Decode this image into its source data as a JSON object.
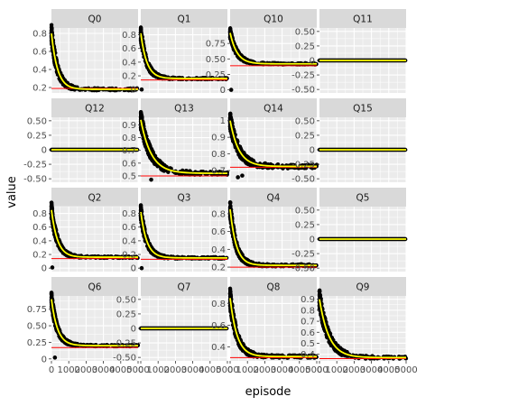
{
  "chart_data": {
    "type": "scatter",
    "layout": "facet_wrap",
    "ncol": 4,
    "xlabel": "episode",
    "ylabel": "value",
    "x_range": [
      0,
      5000
    ],
    "x_ticks": [
      0,
      1000,
      2000,
      3000,
      4000,
      5000
    ],
    "x_tick_labels": [
      "0",
      "1000",
      "2000",
      "3000",
      "4000",
      "5000"
    ],
    "colors": {
      "points": "#000000",
      "smooth": "#ffff00",
      "reference": "#ff0000",
      "panel_bg": "#ebebeb",
      "grid": "#ffffff",
      "strip_bg": "#d9d9d9"
    },
    "panels": [
      {
        "label": "Q0",
        "ylim": [
          0.14,
          0.86
        ],
        "y_ticks": [
          0.2,
          0.4,
          0.6,
          0.8
        ],
        "y_tick_labels": [
          "0.2",
          "0.4",
          "0.6",
          "0.8"
        ],
        "start": 0.8,
        "plateau": 0.18,
        "decay": 350,
        "reference": 0.19,
        "outliers": []
      },
      {
        "label": "Q1",
        "ylim": [
          -0.05,
          0.9
        ],
        "y_ticks": [
          0,
          0.2,
          0.4,
          0.6,
          0.8
        ],
        "y_tick_labels": [
          "0",
          "0.2",
          "0.4",
          "0.6",
          "0.8"
        ],
        "start": 0.82,
        "plateau": 0.16,
        "decay": 350,
        "reference": 0.14,
        "outliers": [
          [
            50,
            0
          ]
        ]
      },
      {
        "label": "Q10",
        "ylim": [
          -0.05,
          1.0
        ],
        "y_ticks": [
          0,
          0.25,
          0.5,
          0.75
        ],
        "y_tick_labels": [
          "0",
          "0.25",
          "0.50",
          "0.75"
        ],
        "start": 0.92,
        "plateau": 0.42,
        "decay": 400,
        "reference": 0.39,
        "outliers": [
          [
            60,
            0
          ]
        ]
      },
      {
        "label": "Q11",
        "ylim": [
          -0.56,
          0.56
        ],
        "y_ticks": [
          -0.5,
          -0.25,
          0,
          0.25,
          0.5
        ],
        "y_tick_labels": [
          "-0.50",
          "-0.25",
          "0",
          "0.25",
          "0.50"
        ],
        "start": 0,
        "plateau": 0,
        "decay": 400,
        "reference": 0,
        "outliers": []
      },
      {
        "label": "Q12",
        "ylim": [
          -0.56,
          0.56
        ],
        "y_ticks": [
          -0.5,
          -0.25,
          0,
          0.25,
          0.5
        ],
        "y_tick_labels": [
          "-0.50",
          "-0.25",
          "0",
          "0.25",
          "0.50"
        ],
        "start": 0,
        "plateau": 0,
        "decay": 400,
        "reference": 0,
        "outliers": []
      },
      {
        "label": "Q13",
        "ylim": [
          0.45,
          0.96
        ],
        "y_ticks": [
          0.5,
          0.6,
          0.7,
          0.8,
          0.9
        ],
        "y_tick_labels": [
          "0.5",
          "0.6",
          "0.7",
          "0.8",
          "0.9"
        ],
        "start": 0.94,
        "plateau": 0.52,
        "decay": 600,
        "reference": 0.5,
        "outliers": [
          [
            600,
            0.47
          ]
        ]
      },
      {
        "label": "Q14",
        "ylim": [
          0.63,
          1.02
        ],
        "y_ticks": [
          0.7,
          0.8,
          0.9,
          1.0
        ],
        "y_tick_labels": [
          "0.7",
          "0.8",
          "0.9",
          "1"
        ],
        "start": 1.0,
        "plateau": 0.725,
        "decay": 500,
        "reference": 0.72,
        "outliers": [
          [
            450,
            0.66
          ],
          [
            700,
            0.67
          ]
        ]
      },
      {
        "label": "Q15",
        "ylim": [
          -0.56,
          0.56
        ],
        "y_ticks": [
          -0.5,
          -0.25,
          0,
          0.25,
          0.5
        ],
        "y_tick_labels": [
          "-0.50",
          "-0.25",
          "0",
          "0.25",
          "0.50"
        ],
        "start": 0,
        "plateau": 0,
        "decay": 400,
        "reference": 0,
        "outliers": []
      },
      {
        "label": "Q2",
        "ylim": [
          -0.05,
          0.9
        ],
        "y_ticks": [
          0,
          0.2,
          0.4,
          0.6,
          0.8
        ],
        "y_tick_labels": [
          "0",
          "0.2",
          "0.4",
          "0.6",
          "0.8"
        ],
        "start": 0.85,
        "plateau": 0.16,
        "decay": 350,
        "reference": 0.14,
        "outliers": [
          [
            50,
            0.01
          ]
        ]
      },
      {
        "label": "Q3",
        "ylim": [
          -0.05,
          0.9
        ],
        "y_ticks": [
          0,
          0.2,
          0.4,
          0.6,
          0.8
        ],
        "y_tick_labels": [
          "0",
          "0.2",
          "0.4",
          "0.6",
          "0.8"
        ],
        "start": 0.82,
        "plateau": 0.15,
        "decay": 350,
        "reference": 0.13,
        "outliers": [
          [
            50,
            0
          ]
        ]
      },
      {
        "label": "Q4",
        "ylim": [
          0.15,
          0.88
        ],
        "y_ticks": [
          0.2,
          0.4,
          0.6,
          0.8
        ],
        "y_tick_labels": [
          "0.2",
          "0.4",
          "0.6",
          "0.8"
        ],
        "start": 0.85,
        "plateau": 0.22,
        "decay": 350,
        "reference": 0.2,
        "outliers": []
      },
      {
        "label": "Q5",
        "ylim": [
          -0.56,
          0.56
        ],
        "y_ticks": [
          -0.5,
          -0.25,
          0,
          0.25,
          0.5
        ],
        "y_tick_labels": [
          "-0.50",
          "-0.25",
          "0",
          "0.25",
          "0.50"
        ],
        "start": 0,
        "plateau": 0,
        "decay": 400,
        "reference": 0,
        "outliers": []
      },
      {
        "label": "Q6",
        "ylim": [
          -0.03,
          0.95
        ],
        "y_ticks": [
          0,
          0.25,
          0.5,
          0.75
        ],
        "y_tick_labels": [
          "0",
          "0.25",
          "0.50",
          "0.75"
        ],
        "start": 0.9,
        "plateau": 0.2,
        "decay": 350,
        "reference": 0.17,
        "outliers": [
          [
            200,
            0.02
          ]
        ]
      },
      {
        "label": "Q7",
        "ylim": [
          -0.56,
          0.56
        ],
        "y_ticks": [
          -0.5,
          -0.25,
          0,
          0.25,
          0.5
        ],
        "y_tick_labels": [
          "-0.50",
          "-0.25",
          "0",
          "0.25",
          "0.50"
        ],
        "start": 0,
        "plateau": 0,
        "decay": 400,
        "reference": 0,
        "outliers": []
      },
      {
        "label": "Q8",
        "ylim": [
          0.27,
          0.87
        ],
        "y_ticks": [
          0.4,
          0.6,
          0.8
        ],
        "y_tick_labels": [
          "0.4",
          "0.6",
          "0.8"
        ],
        "start": 0.85,
        "plateau": 0.31,
        "decay": 400,
        "reference": 0.3,
        "outliers": []
      },
      {
        "label": "Q9",
        "ylim": [
          0.34,
          0.93
        ],
        "y_ticks": [
          0.4,
          0.5,
          0.6,
          0.7,
          0.8,
          0.9
        ],
        "y_tick_labels": [
          "0.4",
          "0.5",
          "0.6",
          "0.7",
          "0.8",
          "0.9"
        ],
        "start": 0.9,
        "plateau": 0.37,
        "decay": 550,
        "reference": 0.36,
        "outliers": []
      }
    ]
  }
}
